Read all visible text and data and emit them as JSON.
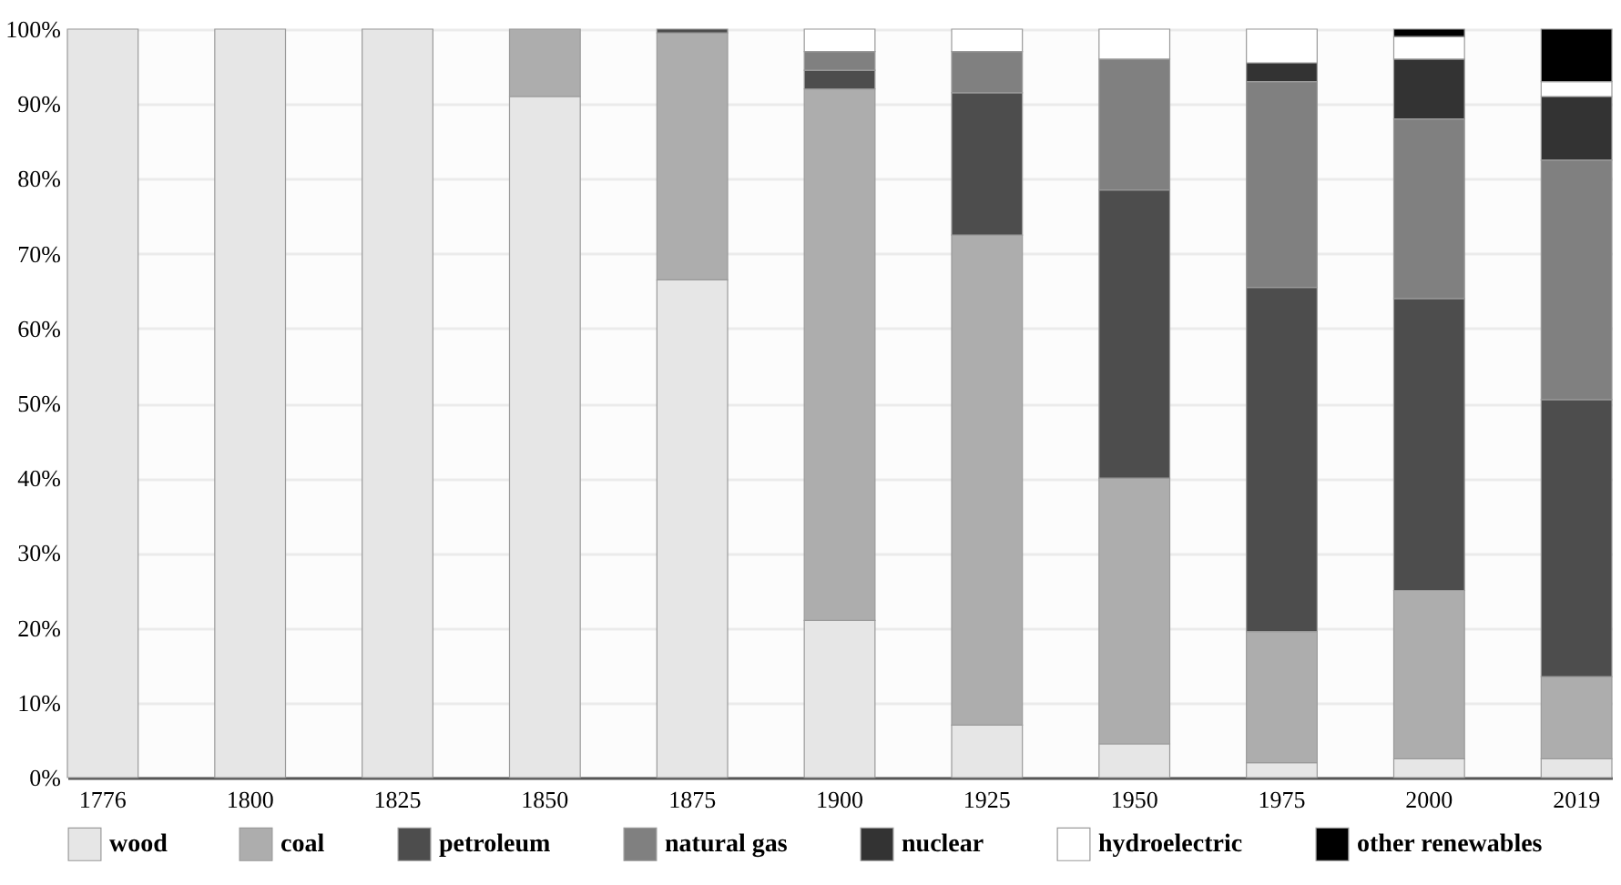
{
  "chart_data": {
    "type": "bar",
    "stacked": true,
    "categories": [
      "1776",
      "1800",
      "1825",
      "1850",
      "1875",
      "1900",
      "1925",
      "1950",
      "1975",
      "2000",
      "2019"
    ],
    "series": [
      {
        "name": "wood",
        "color": "#e6e6e6",
        "values": [
          100,
          100,
          100,
          91,
          66.5,
          21,
          7,
          4.5,
          2,
          2.5,
          2.5
        ]
      },
      {
        "name": "coal",
        "color": "#adadad",
        "values": [
          null,
          null,
          null,
          9,
          33,
          71,
          65.5,
          35.5,
          17.5,
          22.5,
          11
        ]
      },
      {
        "name": "petroleum",
        "color": "#4d4d4d",
        "values": [
          null,
          null,
          null,
          null,
          0.5,
          2.5,
          19,
          38.5,
          46,
          39,
          37
        ]
      },
      {
        "name": "natural gas",
        "color": "#808080",
        "values": [
          null,
          null,
          null,
          null,
          null,
          2.5,
          5.5,
          17.5,
          27.5,
          24,
          32
        ]
      },
      {
        "name": "nuclear",
        "color": "#333333",
        "values": [
          null,
          null,
          null,
          null,
          null,
          null,
          null,
          null,
          2.5,
          8,
          8.5
        ]
      },
      {
        "name": "hydroelectric",
        "color": "#ffffff",
        "values": [
          null,
          null,
          null,
          null,
          null,
          3,
          3,
          4,
          4.5,
          3,
          2
        ]
      },
      {
        "name": "other renewables",
        "color": "#000000",
        "values": [
          null,
          null,
          null,
          null,
          null,
          null,
          null,
          null,
          null,
          1,
          7
        ]
      }
    ],
    "ylim": [
      0,
      100
    ],
    "yticks": [
      {
        "value": 0,
        "label": "0%"
      },
      {
        "value": 10,
        "label": "10%"
      },
      {
        "value": 20,
        "label": "20%"
      },
      {
        "value": 30,
        "label": "30%"
      },
      {
        "value": 40,
        "label": "40%"
      },
      {
        "value": 50,
        "label": "50%"
      },
      {
        "value": 60,
        "label": "60%"
      },
      {
        "value": 70,
        "label": "70%"
      },
      {
        "value": 80,
        "label": "80%"
      },
      {
        "value": 90,
        "label": "90%"
      },
      {
        "value": 100,
        "label": "100%"
      }
    ],
    "grid": "y",
    "legend": "bottom"
  }
}
